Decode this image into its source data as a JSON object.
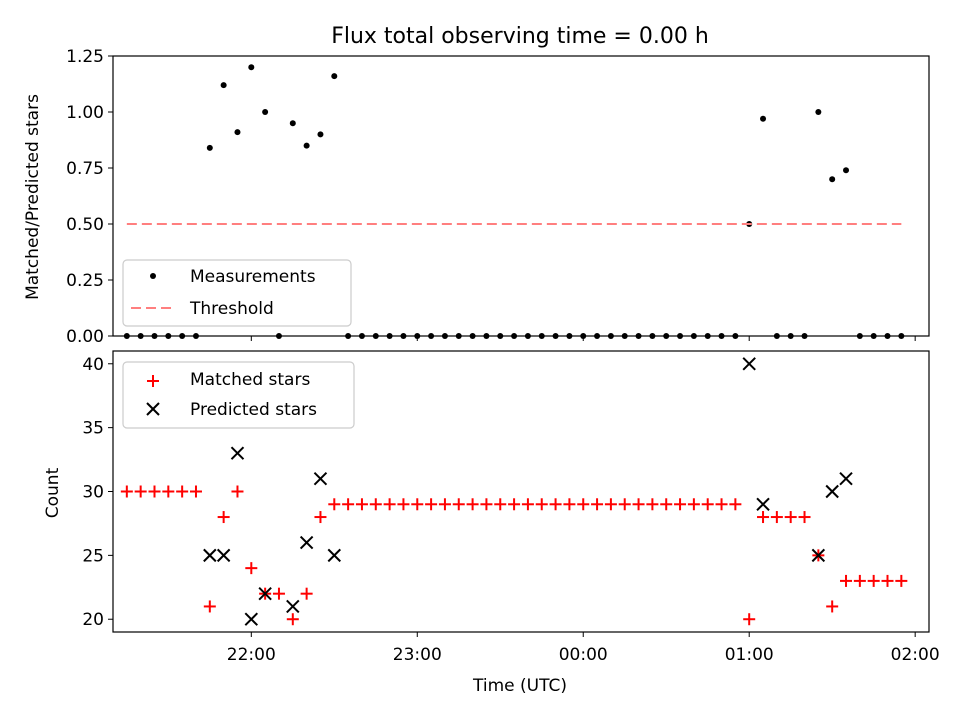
{
  "chart_data": [
    {
      "type": "scatter",
      "title": "Flux total observing time = 0.00 h",
      "xlabel": "",
      "ylabel": "Matched/Predicted stars",
      "ylim": [
        0,
        1.25
      ],
      "yticks": [
        "0.00",
        "0.25",
        "0.50",
        "0.75",
        "1.00",
        "1.25"
      ],
      "legend_position": "lower-left",
      "series": [
        {
          "name": "Measurements",
          "marker": "dot",
          "color": "#000000",
          "x": [
            "21:15",
            "21:20",
            "21:25",
            "21:30",
            "21:35",
            "21:40",
            "21:45",
            "21:50",
            "21:55",
            "22:00",
            "22:05",
            "22:10",
            "22:15",
            "22:20",
            "22:25",
            "22:30",
            "22:35",
            "22:40",
            "22:45",
            "22:50",
            "22:55",
            "23:00",
            "23:05",
            "23:10",
            "23:15",
            "23:20",
            "23:25",
            "23:30",
            "23:35",
            "23:40",
            "23:45",
            "23:50",
            "23:55",
            "00:00",
            "00:05",
            "00:10",
            "00:15",
            "00:20",
            "00:25",
            "00:30",
            "00:35",
            "00:40",
            "00:45",
            "00:50",
            "00:55",
            "01:00",
            "01:05",
            "01:10",
            "01:15",
            "01:20",
            "01:25",
            "01:30",
            "01:35",
            "01:40",
            "01:45",
            "01:50",
            "01:55"
          ],
          "values": [
            0,
            0,
            0,
            0,
            0,
            0,
            0.84,
            1.12,
            0.91,
            1.2,
            1.0,
            0,
            0.95,
            0.85,
            0.9,
            1.16,
            0,
            0,
            0,
            0,
            0,
            0,
            0,
            0,
            0,
            0,
            0,
            0,
            0,
            0,
            0,
            0,
            0,
            0,
            0,
            0,
            0,
            0,
            0,
            0,
            0,
            0,
            0,
            0,
            0,
            0.5,
            0.97,
            0,
            0,
            0,
            1.0,
            0.7,
            0.74,
            0,
            0,
            0,
            0
          ]
        },
        {
          "name": "Threshold",
          "line": "dashed",
          "color": "#ff7f7f",
          "x": [
            "21:15",
            "01:55"
          ],
          "values": [
            0.5,
            0.5
          ]
        }
      ]
    },
    {
      "type": "scatter",
      "title": "",
      "xlabel": "Time (UTC)",
      "ylabel": "Count",
      "ylim": [
        19,
        41
      ],
      "yticks": [
        "20",
        "25",
        "30",
        "35",
        "40"
      ],
      "xlim": [
        "21:10",
        "02:05"
      ],
      "xticks": [
        "22:00",
        "23:00",
        "00:00",
        "01:00",
        "02:00"
      ],
      "legend_position": "top-left",
      "series": [
        {
          "name": "Matched stars",
          "marker": "plus",
          "color": "#ff0000",
          "x": [
            "21:15",
            "21:20",
            "21:25",
            "21:30",
            "21:35",
            "21:40",
            "21:45",
            "21:50",
            "21:55",
            "22:00",
            "22:05",
            "22:10",
            "22:15",
            "22:20",
            "22:25",
            "22:30",
            "22:35",
            "22:40",
            "22:45",
            "22:50",
            "22:55",
            "23:00",
            "23:05",
            "23:10",
            "23:15",
            "23:20",
            "23:25",
            "23:30",
            "23:35",
            "23:40",
            "23:45",
            "23:50",
            "23:55",
            "00:00",
            "00:05",
            "00:10",
            "00:15",
            "00:20",
            "00:25",
            "00:30",
            "00:35",
            "00:40",
            "00:45",
            "00:50",
            "00:55",
            "01:00",
            "01:05",
            "01:10",
            "01:15",
            "01:20",
            "01:25",
            "01:30",
            "01:35",
            "01:40",
            "01:45",
            "01:50",
            "01:55"
          ],
          "values": [
            30,
            30,
            30,
            30,
            30,
            30,
            21,
            28,
            30,
            24,
            22,
            22,
            20,
            22,
            28,
            29,
            29,
            29,
            29,
            29,
            29,
            29,
            29,
            29,
            29,
            29,
            29,
            29,
            29,
            29,
            29,
            29,
            29,
            29,
            29,
            29,
            29,
            29,
            29,
            29,
            29,
            29,
            29,
            29,
            29,
            20,
            28,
            28,
            28,
            28,
            25,
            21,
            23,
            23,
            23,
            23,
            23
          ]
        },
        {
          "name": "Predicted stars",
          "marker": "x",
          "color": "#000000",
          "x": [
            "21:45",
            "21:50",
            "21:55",
            "22:00",
            "22:05",
            "22:15",
            "22:20",
            "22:25",
            "22:30",
            "01:00",
            "01:05",
            "01:25",
            "01:30",
            "01:35"
          ],
          "values": [
            25,
            25,
            33,
            20,
            22,
            21,
            26,
            31,
            25,
            40,
            29,
            25,
            30,
            31
          ]
        }
      ]
    }
  ]
}
